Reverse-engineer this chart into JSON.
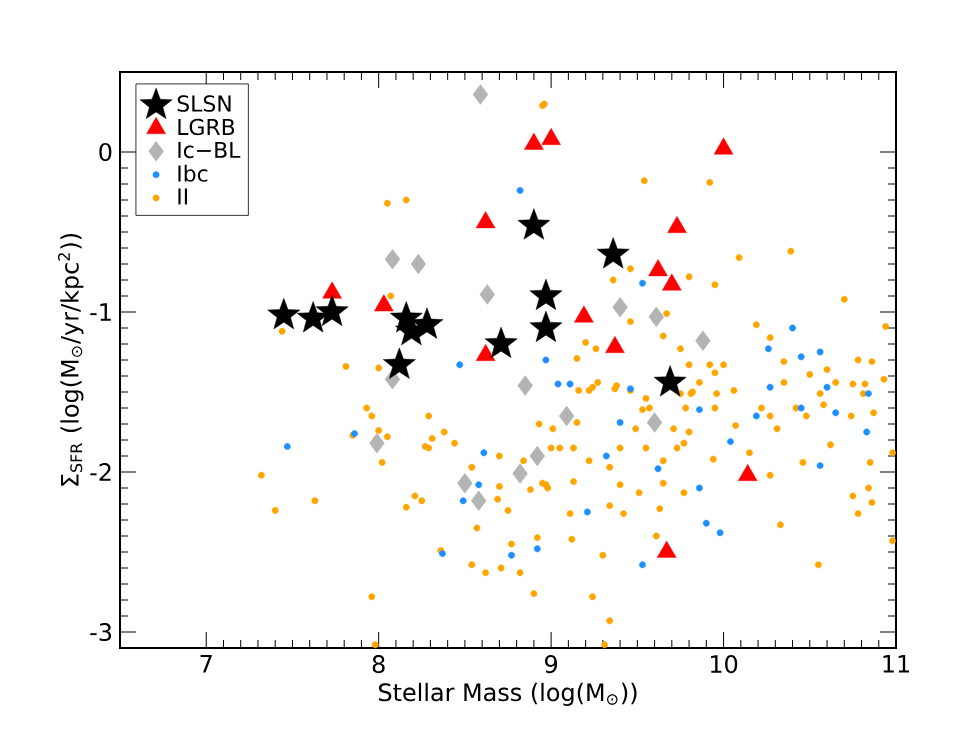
{
  "chart_data": {
    "type": "scatter",
    "xlabel": "Stellar Mass (log(M$_{⊙}$))",
    "ylabel": "Σ$_{SFR}$ (log(M$_{⊙}$/yr/kpc$^{2}$))",
    "xlim": [
      6.5,
      11
    ],
    "ylim": [
      -3.1,
      0.5
    ],
    "xticks": [
      7,
      8,
      9,
      10,
      11
    ],
    "yticks": [
      -3,
      -2,
      -1,
      0
    ],
    "legend": "top left",
    "series": [
      {
        "name": "SLSN",
        "color": "#000000",
        "marker": "star",
        "x": [
          7.45,
          7.62,
          7.73,
          8.16,
          8.28,
          8.19,
          8.12,
          8.71,
          8.9,
          8.97,
          8.97,
          9.36,
          9.69
        ],
        "values": [
          -1.02,
          -1.04,
          -1.0,
          -1.04,
          -1.08,
          -1.12,
          -1.33,
          -1.2,
          -0.46,
          -0.9,
          -1.1,
          -0.64,
          -1.44
        ]
      },
      {
        "name": "LGRB",
        "color": "#ff0000",
        "marker": "triangle",
        "x": [
          7.73,
          8.03,
          8.62,
          8.62,
          8.9,
          9.0,
          10.0,
          9.73,
          9.62,
          9.7,
          9.19,
          9.37,
          10.14,
          9.67
        ],
        "values": [
          -0.88,
          -0.96,
          -0.44,
          -1.27,
          0.05,
          0.08,
          0.02,
          -0.47,
          -0.74,
          -0.83,
          -1.03,
          -1.22,
          -2.02,
          -2.5
        ]
      },
      {
        "name": "Ic−BL",
        "color": "#b4b4b4",
        "marker": "diamond",
        "x": [
          8.59,
          8.08,
          8.23,
          8.63,
          8.08,
          8.85,
          9.4,
          9.61,
          9.88,
          7.99,
          8.5,
          8.58,
          8.82,
          8.92,
          9.09,
          9.6
        ],
        "values": [
          0.36,
          -0.67,
          -0.7,
          -0.89,
          -1.42,
          -1.46,
          -0.97,
          -1.03,
          -1.18,
          -1.82,
          -2.07,
          -2.18,
          -2.01,
          -1.9,
          -1.65,
          -1.69
        ]
      },
      {
        "name": "Ibc",
        "color": "#1e8fff",
        "marker": "circle",
        "x": [
          8.82,
          8.47,
          8.97,
          9.53,
          10.4,
          10.26,
          10.45,
          10.56,
          9.04,
          9.46,
          10.6,
          10.84,
          7.47,
          7.86,
          8.61,
          8.58,
          8.49,
          8.37,
          8.77,
          8.92,
          9.11,
          9.86,
          9.4,
          9.32,
          9.62,
          9.86,
          9.21,
          9.9,
          9.98,
          9.53,
          10.04,
          10.27,
          10.45,
          10.65,
          10.83,
          10.56,
          10.19
        ],
        "values": [
          -0.24,
          -1.33,
          -1.3,
          -0.82,
          -1.1,
          -1.23,
          -1.28,
          -1.25,
          -1.45,
          -1.48,
          -1.47,
          -1.51,
          -1.84,
          -1.76,
          -1.88,
          -2.08,
          -2.18,
          -2.51,
          -2.52,
          -2.48,
          -1.45,
          -1.61,
          -1.69,
          -1.9,
          -1.98,
          -2.1,
          -2.25,
          -2.32,
          -2.38,
          -2.58,
          -1.81,
          -1.47,
          -1.6,
          -1.63,
          -1.75,
          -1.96,
          -1.65
        ]
      },
      {
        "name": "II",
        "color": "#ffa500",
        "marker": "circle",
        "x": [
          8.96,
          8.05,
          8.16,
          7.44,
          7.81,
          8.0,
          8.07,
          8.95,
          9.54,
          9.92,
          10.09,
          10.39,
          9.46,
          9.8,
          9.95,
          9.36,
          10.7,
          9.67,
          10.19,
          10.27,
          10.94,
          9.46,
          9.65,
          9.2,
          9.26,
          9.15,
          9.75,
          9.8,
          9.92,
          10.0,
          9.95,
          10.35,
          10.5,
          10.6,
          10.65,
          10.75,
          10.82,
          10.78,
          10.86,
          10.93,
          10.35,
          9.27,
          9.38,
          9.24,
          9.16,
          9.86,
          10.06,
          9.81,
          9.96,
          9.55,
          10.56,
          7.93,
          7.96,
          8.0,
          7.85,
          8.05,
          8.02,
          8.29,
          8.38,
          8.31,
          8.44,
          8.27,
          8.29,
          7.32,
          7.4,
          7.63,
          8.16,
          8.21,
          8.25,
          8.54,
          8.7,
          8.7,
          8.69,
          8.75,
          8.84,
          8.88,
          8.93,
          9.01,
          9.0,
          8.95,
          8.98,
          8.57,
          8.77,
          8.92,
          8.36,
          8.54,
          8.62,
          8.71,
          8.82,
          8.9,
          7.96,
          7.98,
          9.22,
          9.37,
          9.46,
          9.75,
          9.82,
          9.53,
          9.57,
          9.78,
          9.95,
          10.22,
          10.27,
          10.31,
          10.42,
          10.48,
          10.58,
          10.74,
          10.81,
          10.87,
          9.15,
          9.49,
          9.71,
          9.8,
          10.07,
          10.15,
          9.05,
          9.13,
          9.22,
          9.34,
          9.4,
          9.55,
          9.65,
          9.73,
          9.77,
          9.94,
          10.27,
          10.46,
          10.62,
          10.85,
          10.98,
          8.97,
          9.13,
          9.4,
          9.51,
          9.65,
          9.77,
          9.63,
          9.34,
          9.42,
          9.11,
          10.75,
          10.84,
          10.86,
          10.78,
          10.33,
          9.12,
          9.61,
          10.98,
          9.3,
          10.55,
          9.24,
          9.34,
          9.31
        ],
        "values": [
          0.3,
          -0.32,
          -0.3,
          -1.12,
          -1.34,
          -1.35,
          -0.9,
          0.29,
          -0.18,
          -0.19,
          -0.66,
          -0.62,
          -0.73,
          -0.78,
          -0.83,
          -0.8,
          -0.92,
          -1.01,
          -1.08,
          -1.16,
          -1.09,
          -1.06,
          -1.15,
          -1.19,
          -1.23,
          -1.29,
          -1.23,
          -1.33,
          -1.33,
          -1.33,
          -1.38,
          -1.31,
          -1.39,
          -1.36,
          -1.44,
          -1.45,
          -1.45,
          -1.3,
          -1.31,
          -1.42,
          -1.44,
          -1.44,
          -1.46,
          -1.47,
          -1.49,
          -1.44,
          -1.49,
          -1.51,
          -1.51,
          -1.54,
          -1.51,
          -1.6,
          -1.65,
          -1.74,
          -1.77,
          -1.78,
          -1.94,
          -1.65,
          -1.75,
          -1.79,
          -1.82,
          -1.84,
          -1.85,
          -2.02,
          -2.24,
          -2.18,
          -2.22,
          -2.15,
          -2.18,
          -1.97,
          -1.9,
          -2.09,
          -2.17,
          -2.24,
          -1.93,
          -2.11,
          -1.7,
          -1.73,
          -1.85,
          -2.07,
          -2.1,
          -2.35,
          -2.45,
          -2.41,
          -2.49,
          -2.58,
          -2.63,
          -2.6,
          -2.63,
          -2.76,
          -2.78,
          -3.08,
          -1.49,
          -1.48,
          -1.49,
          -1.51,
          -1.5,
          -1.61,
          -1.6,
          -1.6,
          -1.6,
          -1.6,
          -1.65,
          -1.73,
          -1.6,
          -1.65,
          -1.58,
          -1.65,
          -1.51,
          -1.63,
          -1.69,
          -1.73,
          -1.73,
          -1.75,
          -1.71,
          -1.88,
          -1.85,
          -1.85,
          -1.93,
          -1.97,
          -1.85,
          -1.85,
          -1.93,
          -1.85,
          -1.82,
          -1.92,
          -2.02,
          -1.94,
          -1.83,
          -1.94,
          -1.88,
          -2.08,
          -2.06,
          -2.08,
          -2.13,
          -2.07,
          -2.13,
          -2.23,
          -2.21,
          -2.26,
          -2.26,
          -2.15,
          -2.1,
          -2.19,
          -2.26,
          -2.33,
          -2.42,
          -2.4,
          -2.43,
          -2.52,
          -2.58,
          -2.78,
          -2.93,
          -3.08
        ]
      }
    ]
  }
}
